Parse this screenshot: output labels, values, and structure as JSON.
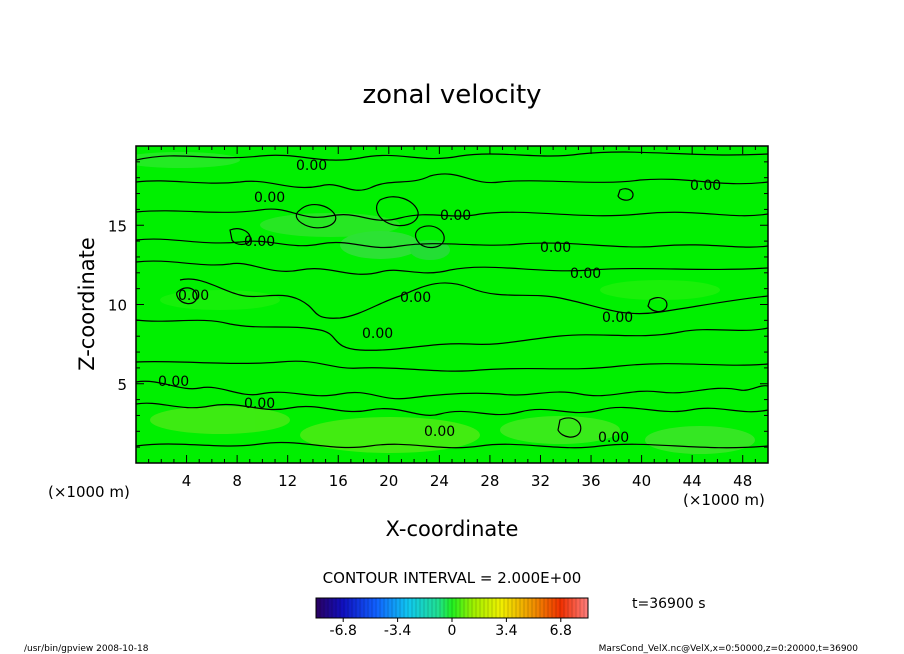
{
  "chart_data": {
    "type": "heatmap",
    "title": "zonal velocity",
    "xlabel": "X-coordinate",
    "ylabel": "Z-coordinate",
    "x_unit": "(×1000 m)",
    "y_unit": "(×1000 m)",
    "xlim": [
      0,
      50
    ],
    "ylim": [
      0,
      20
    ],
    "xticks": [
      4,
      8,
      12,
      16,
      20,
      24,
      28,
      32,
      36,
      40,
      44,
      48
    ],
    "yticks": [
      5,
      10,
      15
    ],
    "contour_interval_text": "CONTOUR INTERVAL = 2.000E+00",
    "contour_value_label": "0.00",
    "contour_levels_labeled": [
      0.0
    ],
    "colorbar": {
      "min": -8.5,
      "max": 8.5,
      "tick_labels": [
        "-6.8",
        "-3.4",
        "0",
        "3.4",
        "6.8"
      ],
      "tick_values": [
        -6.8,
        -3.4,
        0,
        3.4,
        6.8
      ]
    },
    "time_text": "t=36900 s",
    "field_value_range_estimate": [
      -2.0,
      2.0
    ],
    "colors": {
      "field_background": "#00f000",
      "contour": "#000000"
    }
  },
  "footer": {
    "left": "/usr/bin/gpview   2008-10-18",
    "right": "MarsCond_VelX.nc@VelX,x=0:50000,z=0:20000,t=36900"
  }
}
